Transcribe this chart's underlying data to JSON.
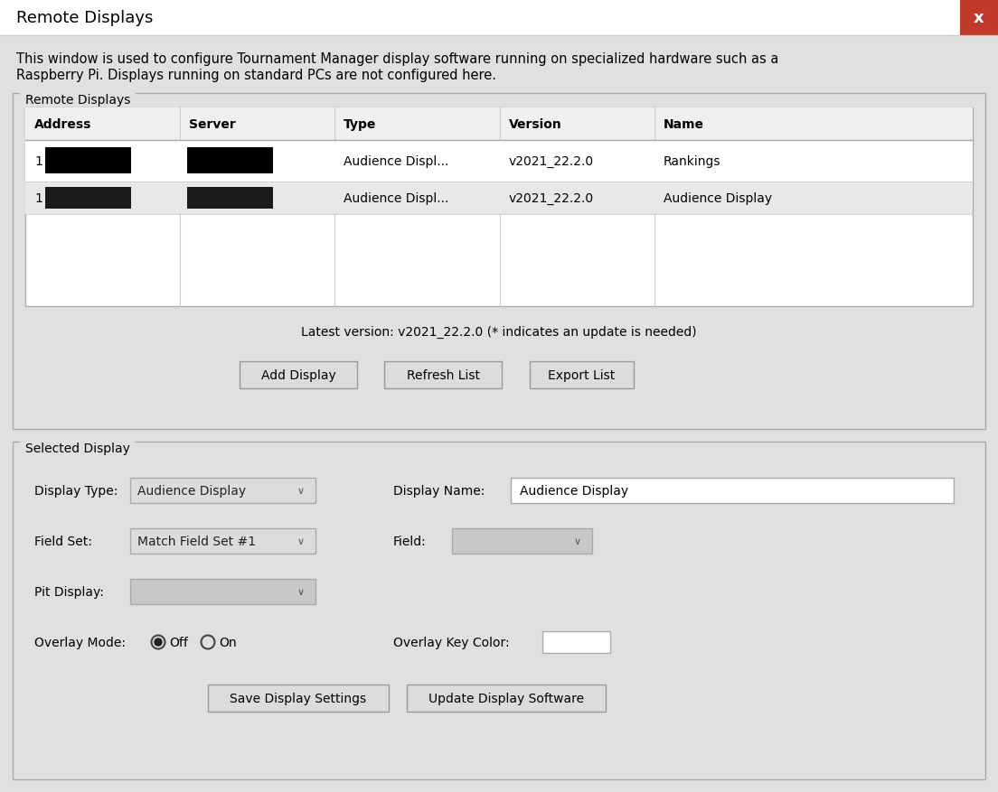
{
  "bg_color": "#e0e0e0",
  "title_text": "Remote Displays",
  "close_btn_color": "#c0392b",
  "description_line1": "This window is used to configure Tournament Manager display software running on specialized hardware such as a",
  "description_line2": "Raspberry Pi. Displays running on standard PCs are not configured here.",
  "section1_label": "Remote Displays",
  "section2_label": "Selected Display",
  "table_headers": [
    "Address",
    "Server",
    "Type",
    "Version",
    "Name"
  ],
  "latest_version_text": "Latest version: v2021_22.2.0 (* indicates an update is needed)",
  "btn_add": "Add Display",
  "btn_refresh": "Refresh List",
  "btn_export": "Export List",
  "lbl_display_type": "Display Type:",
  "dd_display_type": "Audience Display",
  "lbl_display_name": "Display Name:",
  "txt_display_name": "Audience Display",
  "lbl_field_set": "Field Set:",
  "dd_field_set": "Match Field Set #1",
  "lbl_field": "Field:",
  "lbl_pit_display": "Pit Display:",
  "lbl_overlay_mode": "Overlay Mode:",
  "lbl_overlay_key_color": "Overlay Key Color:",
  "btn_save": "Save Display Settings",
  "btn_update": "Update Display Software",
  "row1_type": "Audience Displ...",
  "row1_version": "v2021_22.2.0",
  "row1_name": "Rankings",
  "row2_type": "Audience Displ...",
  "row2_version": "v2021_22.2.0",
  "row2_name": "Audience Display",
  "row2_bg": "#e8e8e8"
}
